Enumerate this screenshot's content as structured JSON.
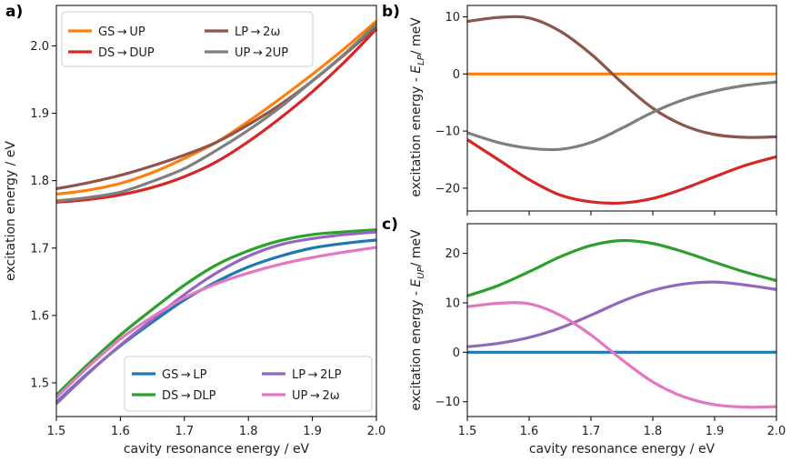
{
  "chart_data": [
    {
      "panel": "a)",
      "type": "line",
      "xlabel": "cavity resonance energy / eV",
      "ylabel": "excitation energy / eV",
      "xlim": [
        1.5,
        2.0
      ],
      "ylim": [
        1.45,
        2.06
      ],
      "xticks": [
        "1.5",
        "1.6",
        "1.7",
        "1.8",
        "1.9",
        "2.0"
      ],
      "yticks": [
        "1.5",
        "1.6",
        "1.7",
        "1.8",
        "1.9",
        "2.0"
      ],
      "x": [
        1.5,
        1.55,
        1.6,
        1.65,
        1.7,
        1.75,
        1.8,
        1.85,
        1.9,
        1.95,
        2.0
      ],
      "legends": [
        {
          "position": "top-left",
          "entries": [
            "GS → UP",
            "DS → DUP",
            "LP → 2ω",
            "UP → 2UP"
          ]
        },
        {
          "position": "bottom-right",
          "entries": [
            "GS → LP",
            "DS → DLP",
            "LP → 2LP",
            "UP → 2ω"
          ]
        }
      ],
      "series": [
        {
          "name": "GS → UP",
          "color": "#ff7f0e",
          "values": [
            1.78,
            1.786,
            1.796,
            1.812,
            1.833,
            1.857,
            1.888,
            1.922,
            1.958,
            1.996,
            2.037
          ]
        },
        {
          "name": "DS → DUP",
          "color": "#d62728",
          "values": [
            1.768,
            1.772,
            1.779,
            1.79,
            1.806,
            1.828,
            1.858,
            1.893,
            1.932,
            1.976,
            2.025
          ]
        },
        {
          "name": "LP → 2ω",
          "color": "#8c564b",
          "values": [
            1.788,
            1.797,
            1.808,
            1.822,
            1.838,
            1.857,
            1.883,
            1.913,
            1.948,
            1.987,
            2.028
          ]
        },
        {
          "name": "UP → 2UP",
          "color": "#7f7f7f",
          "values": [
            1.77,
            1.775,
            1.783,
            1.799,
            1.818,
            1.845,
            1.875,
            1.909,
            1.948,
            1.988,
            2.033
          ]
        },
        {
          "name": "GS → LP",
          "color": "#1f77b4",
          "values": [
            1.471,
            1.515,
            1.555,
            1.59,
            1.623,
            1.65,
            1.672,
            1.688,
            1.7,
            1.707,
            1.712
          ]
        },
        {
          "name": "DS → DLP",
          "color": "#2ca02c",
          "values": [
            1.482,
            1.528,
            1.571,
            1.609,
            1.645,
            1.675,
            1.696,
            1.711,
            1.72,
            1.724,
            1.727
          ]
        },
        {
          "name": "LP → 2LP",
          "color": "#9467bd",
          "values": [
            1.469,
            1.514,
            1.556,
            1.594,
            1.631,
            1.663,
            1.688,
            1.705,
            1.714,
            1.72,
            1.724
          ]
        },
        {
          "name": "UP → 2ω",
          "color": "#e377c2",
          "values": [
            1.478,
            1.524,
            1.565,
            1.598,
            1.626,
            1.647,
            1.663,
            1.676,
            1.686,
            1.694,
            1.701
          ]
        }
      ]
    },
    {
      "panel": "b)",
      "type": "line",
      "xlabel": "",
      "ylabel": "excitation energy - E_LP / meV",
      "ylabel_main": "excitation energy - ",
      "ylabel_sym": "E",
      "ylabel_sub": "LP",
      "ylabel_tail": "/ meV",
      "xlim": [
        1.5,
        2.0
      ],
      "ylim": [
        -24,
        12
      ],
      "yticks": [
        "10",
        "0",
        "−10",
        "−20"
      ],
      "ytick_values": [
        10,
        0,
        -10,
        -20
      ],
      "x": [
        1.5,
        1.55,
        1.6,
        1.65,
        1.7,
        1.75,
        1.8,
        1.85,
        1.9,
        1.95,
        2.0
      ],
      "series": [
        {
          "name": "orange",
          "color": "#ff7f0e",
          "values": [
            0,
            0,
            0,
            0,
            0,
            0,
            0,
            0,
            0,
            0,
            0
          ]
        },
        {
          "name": "brown",
          "color": "#8c564b",
          "values": [
            9.2,
            9.9,
            9.8,
            7.5,
            3.5,
            -1.5,
            -6.0,
            -9.0,
            -10.6,
            -11.1,
            -11.0
          ]
        },
        {
          "name": "gray",
          "color": "#7f7f7f",
          "values": [
            -10.3,
            -12.0,
            -13.0,
            -13.2,
            -12.0,
            -9.5,
            -6.7,
            -4.5,
            -3.0,
            -2.0,
            -1.4
          ]
        },
        {
          "name": "red",
          "color": "#d62728",
          "values": [
            -11.5,
            -15.0,
            -18.5,
            -21.2,
            -22.4,
            -22.6,
            -21.8,
            -20.1,
            -18.0,
            -16.0,
            -14.5
          ]
        }
      ]
    },
    {
      "panel": "c)",
      "type": "line",
      "xlabel": "cavity resonance energy / eV",
      "ylabel": "excitation energy - E_UP / meV",
      "ylabel_main": "excitation energy - ",
      "ylabel_sym": "E",
      "ylabel_sub": "UP",
      "ylabel_tail": "/ meV",
      "xlim": [
        1.5,
        2.0
      ],
      "ylim": [
        -13,
        26
      ],
      "xticks": [
        "1.5",
        "1.6",
        "1.7",
        "1.8",
        "1.9",
        "2.0"
      ],
      "yticks": [
        "20",
        "10",
        "0",
        "−10"
      ],
      "ytick_values": [
        20,
        10,
        0,
        -10
      ],
      "x": [
        1.5,
        1.55,
        1.6,
        1.65,
        1.7,
        1.75,
        1.8,
        1.85,
        1.9,
        1.95,
        2.0
      ],
      "series": [
        {
          "name": "blue",
          "color": "#1f77b4",
          "values": [
            0,
            0,
            0,
            0,
            0,
            0,
            0,
            0,
            0,
            0,
            0
          ]
        },
        {
          "name": "green",
          "color": "#2ca02c",
          "values": [
            11.4,
            13.5,
            16.3,
            19.3,
            21.6,
            22.6,
            22.0,
            20.3,
            18.2,
            16.2,
            14.5
          ]
        },
        {
          "name": "purple",
          "color": "#9467bd",
          "values": [
            1.1,
            1.8,
            3.0,
            4.9,
            7.5,
            10.3,
            12.5,
            13.8,
            14.2,
            13.6,
            12.7
          ]
        },
        {
          "name": "pink",
          "color": "#e377c2",
          "values": [
            9.2,
            9.9,
            9.8,
            7.5,
            3.5,
            -1.5,
            -6.0,
            -9.0,
            -10.6,
            -11.1,
            -11.0
          ]
        }
      ]
    }
  ]
}
